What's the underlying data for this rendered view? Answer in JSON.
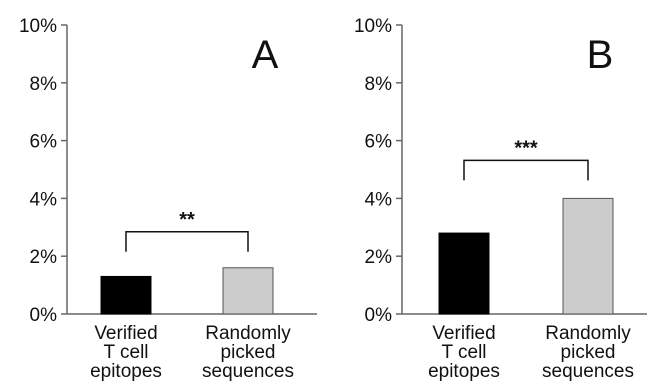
{
  "chart_data": [
    {
      "type": "bar",
      "panel_label": "A",
      "categories": [
        "Verified\nT cell\nepitopes",
        "Randomly\npicked\nsequences"
      ],
      "values": [
        1.3,
        1.6
      ],
      "bar_colors": [
        "#000000",
        "#cccccc"
      ],
      "ylim": [
        0,
        10
      ],
      "yticks": [
        "0%",
        "2%",
        "4%",
        "6%",
        "8%",
        "10%"
      ],
      "significance": "**",
      "grid": false,
      "legend": "none"
    },
    {
      "type": "bar",
      "panel_label": "B",
      "categories": [
        "Verified\nT cell\nepitopes",
        "Randomly\npicked\nsequences"
      ],
      "values": [
        2.8,
        4.0
      ],
      "bar_colors": [
        "#000000",
        "#cccccc"
      ],
      "ylim": [
        0,
        10
      ],
      "yticks": [
        "0%",
        "2%",
        "4%",
        "6%",
        "8%",
        "10%"
      ],
      "significance": "***",
      "grid": false,
      "legend": "none"
    }
  ]
}
